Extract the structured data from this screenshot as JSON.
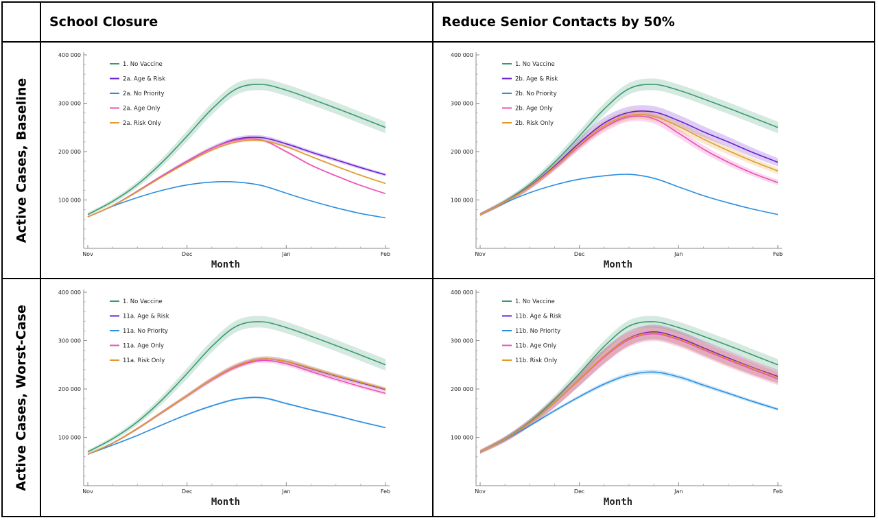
{
  "table": {
    "corner": "",
    "column_headers": [
      "School Closure",
      "Reduce Senior Contacts by 50%"
    ],
    "row_headers": [
      "Active Cases, Baseline",
      "Active Cases, Worst-Case"
    ]
  },
  "colors": {
    "no_vaccine": "#3a9a6e",
    "age_risk": "#6a1fd0",
    "no_priority": "#2a8ee0",
    "age_only": "#ec4fb4",
    "risk_only": "#e09a2a",
    "grid_line": "#000000"
  },
  "chart_data": [
    {
      "type": "line",
      "title": "",
      "xlabel": "Month",
      "ylabel": "",
      "x_ticks": [
        "Nov",
        "Dec",
        "Jan",
        "Feb"
      ],
      "y_ticks": [
        "100 000",
        "200 000",
        "300 000",
        "400 000"
      ],
      "ylim": [
        0,
        400000
      ],
      "xlim": [
        0,
        3
      ],
      "x": [
        0,
        0.25,
        0.5,
        0.75,
        1,
        1.25,
        1.5,
        1.75,
        2,
        2.25,
        2.5,
        2.75,
        3
      ],
      "series": [
        {
          "name": "1. No Vaccine",
          "color_key": "no_vaccine",
          "values": [
            70000,
            97000,
            132000,
            178000,
            232000,
            288000,
            330000,
            339000,
            327000,
            309000,
            290000,
            270000,
            250000
          ],
          "band": 12000
        },
        {
          "name": "2a. Age & Risk",
          "color_key": "age_risk",
          "values": [
            65000,
            88000,
            118000,
            150000,
            180000,
            207000,
            226000,
            229000,
            216000,
            199000,
            183000,
            167000,
            152000
          ],
          "band": 5000
        },
        {
          "name": "2a. No Priority",
          "color_key": "no_priority",
          "values": [
            65000,
            87000,
            105000,
            120000,
            131000,
            137000,
            137000,
            130000,
            114000,
            98000,
            84000,
            72000,
            63000
          ],
          "band": 2000
        },
        {
          "name": "2a. Age Only",
          "color_key": "age_only",
          "values": [
            65000,
            88000,
            118000,
            150000,
            180000,
            207000,
            224000,
            224000,
            200000,
            172000,
            150000,
            130000,
            113000
          ],
          "band": 3000
        },
        {
          "name": "2a. Risk Only",
          "color_key": "risk_only",
          "values": [
            65000,
            88000,
            117000,
            148000,
            177000,
            203000,
            220000,
            223000,
            210000,
            190000,
            170000,
            151000,
            134000
          ],
          "band": 3000
        }
      ]
    },
    {
      "type": "line",
      "title": "",
      "xlabel": "Month",
      "ylabel": "",
      "x_ticks": [
        "Nov",
        "Dec",
        "Jan",
        "Feb"
      ],
      "y_ticks": [
        "100 000",
        "200 000",
        "300 000",
        "400 000"
      ],
      "ylim": [
        0,
        400000
      ],
      "xlim": [
        0,
        3
      ],
      "x": [
        0,
        0.25,
        0.5,
        0.75,
        1,
        1.25,
        1.5,
        1.75,
        2,
        2.25,
        2.5,
        2.75,
        3
      ],
      "series": [
        {
          "name": "1. No Vaccine",
          "color_key": "no_vaccine",
          "values": [
            70000,
            97000,
            132000,
            178000,
            232000,
            288000,
            330000,
            339000,
            327000,
            309000,
            290000,
            270000,
            250000
          ],
          "band": 12000
        },
        {
          "name": "2b. Age & Risk",
          "color_key": "age_risk",
          "values": [
            70000,
            96000,
            128000,
            170000,
            218000,
            259000,
            281000,
            282000,
            264000,
            241000,
            220000,
            198000,
            178000
          ],
          "band": 12000
        },
        {
          "name": "2b. No Priority",
          "color_key": "no_priority",
          "values": [
            70000,
            94000,
            115000,
            131000,
            143000,
            150000,
            153000,
            145000,
            127000,
            109000,
            94000,
            81000,
            70000
          ],
          "band": 2000
        },
        {
          "name": "2b. Age Only",
          "color_key": "age_only",
          "values": [
            70000,
            96000,
            127000,
            167000,
            212000,
            250000,
            272000,
            268000,
            238000,
            205000,
            178000,
            155000,
            136000
          ],
          "band": 10000
        },
        {
          "name": "2b. Risk Only",
          "color_key": "risk_only",
          "values": [
            70000,
            96000,
            127000,
            168000,
            214000,
            254000,
            275000,
            273000,
            252000,
            226000,
            202000,
            180000,
            160000
          ],
          "band": 10000
        }
      ]
    },
    {
      "type": "line",
      "title": "",
      "xlabel": "Month",
      "ylabel": "",
      "x_ticks": [
        "Nov",
        "Dec",
        "Jan",
        "Feb"
      ],
      "y_ticks": [
        "100 000",
        "200 000",
        "300 000",
        "400 000"
      ],
      "ylim": [
        0,
        400000
      ],
      "xlim": [
        0,
        3
      ],
      "x": [
        0,
        0.25,
        0.5,
        0.75,
        1,
        1.25,
        1.5,
        1.75,
        2,
        2.25,
        2.5,
        2.75,
        3
      ],
      "series": [
        {
          "name": "1. No Vaccine",
          "color_key": "no_vaccine",
          "values": [
            70000,
            97000,
            132000,
            178000,
            232000,
            288000,
            330000,
            339000,
            327000,
            309000,
            290000,
            270000,
            250000
          ],
          "band": 12000
        },
        {
          "name": "11a. Age & Risk",
          "color_key": "age_risk",
          "values": [
            65000,
            88000,
            118000,
            152000,
            186000,
            220000,
            248000,
            262000,
            257000,
            242000,
            227000,
            213000,
            199000
          ],
          "band": 5000
        },
        {
          "name": "11a. No Priority",
          "color_key": "no_priority",
          "values": [
            65000,
            84000,
            104000,
            126000,
            147000,
            165000,
            179000,
            182000,
            170000,
            157000,
            145000,
            132000,
            120000
          ],
          "band": 3000
        },
        {
          "name": "11a. Age Only",
          "color_key": "age_only",
          "values": [
            65000,
            88000,
            118000,
            152000,
            186000,
            219000,
            246000,
            259000,
            252000,
            236000,
            220000,
            205000,
            191000
          ],
          "band": 5000
        },
        {
          "name": "11a. Risk Only",
          "color_key": "risk_only",
          "values": [
            65000,
            88000,
            118000,
            152000,
            186000,
            220000,
            248000,
            262000,
            257000,
            243000,
            228000,
            214000,
            200000
          ],
          "band": 5000
        }
      ]
    },
    {
      "type": "line",
      "title": "",
      "xlabel": "Month",
      "ylabel": "",
      "x_ticks": [
        "Nov",
        "Dec",
        "Jan",
        "Feb"
      ],
      "y_ticks": [
        "100 000",
        "200 000",
        "300 000",
        "400 000"
      ],
      "ylim": [
        0,
        400000
      ],
      "xlim": [
        0,
        3
      ],
      "x": [
        0,
        0.25,
        0.5,
        0.75,
        1,
        1.25,
        1.5,
        1.75,
        2,
        2.25,
        2.5,
        2.75,
        3
      ],
      "series": [
        {
          "name": "1. No Vaccine",
          "color_key": "no_vaccine",
          "values": [
            70000,
            97000,
            132000,
            178000,
            232000,
            288000,
            330000,
            339000,
            327000,
            309000,
            290000,
            270000,
            250000
          ],
          "band": 12000
        },
        {
          "name": "11b. Age & Risk",
          "color_key": "age_risk",
          "values": [
            70000,
            96000,
            130000,
            172000,
            220000,
            268000,
            305000,
            318000,
            306000,
            285000,
            264000,
            244000,
            226000
          ],
          "band": 15000
        },
        {
          "name": "11b. No Priority",
          "color_key": "no_priority",
          "values": [
            70000,
            95000,
            124000,
            155000,
            184000,
            210000,
            229000,
            235000,
            225000,
            208000,
            191000,
            174000,
            158000
          ],
          "band": 5000
        },
        {
          "name": "11b. Age Only",
          "color_key": "age_only",
          "values": [
            70000,
            96000,
            130000,
            172000,
            219000,
            266000,
            302000,
            314000,
            302000,
            281000,
            260000,
            240000,
            221000
          ],
          "band": 15000
        },
        {
          "name": "11b. Risk Only",
          "color_key": "risk_only",
          "values": [
            70000,
            96000,
            130000,
            172000,
            220000,
            268000,
            304000,
            316000,
            304000,
            283000,
            262000,
            243000,
            224000
          ],
          "band": 15000
        }
      ]
    }
  ]
}
